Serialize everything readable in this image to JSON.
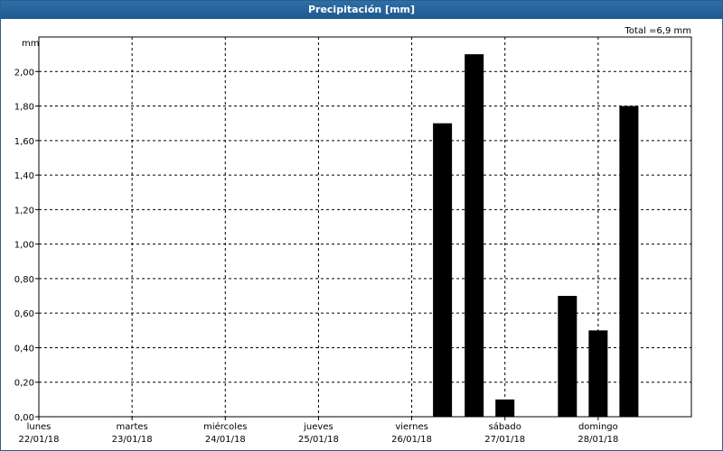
{
  "window": {
    "title": "Precipitación [mm]"
  },
  "chart_data": {
    "type": "bar",
    "title": "Precipitación [mm]",
    "unit": "mm",
    "total_label": "Total =6,9 mm",
    "ylim": [
      0,
      2.2
    ],
    "y_ticks": [
      {
        "value": 0.0,
        "label": "0,00"
      },
      {
        "value": 0.2,
        "label": "0,20"
      },
      {
        "value": 0.4,
        "label": "0,40"
      },
      {
        "value": 0.6,
        "label": "0,60"
      },
      {
        "value": 0.8,
        "label": "0,80"
      },
      {
        "value": 1.0,
        "label": "1,00"
      },
      {
        "value": 1.2,
        "label": "1,20"
      },
      {
        "value": 1.4,
        "label": "1,40"
      },
      {
        "value": 1.6,
        "label": "1,60"
      },
      {
        "value": 1.8,
        "label": "1,80"
      },
      {
        "value": 2.0,
        "label": "2,00"
      }
    ],
    "days": [
      {
        "name": "lunes",
        "date": "22/01/18"
      },
      {
        "name": "martes",
        "date": "23/01/18"
      },
      {
        "name": "miércoles",
        "date": "24/01/18"
      },
      {
        "name": "jueves",
        "date": "25/01/18"
      },
      {
        "name": "viernes",
        "date": "26/01/18"
      },
      {
        "name": "sábado",
        "date": "27/01/18"
      },
      {
        "name": "domingo",
        "date": "28/01/18"
      }
    ],
    "series": [
      {
        "values": [
          {
            "day": 4.33,
            "value": 1.7
          },
          {
            "day": 4.67,
            "value": 2.1
          },
          {
            "day": 5.0,
            "value": 0.1
          },
          {
            "day": 5.67,
            "value": 0.7
          },
          {
            "day": 6.0,
            "value": 0.5
          },
          {
            "day": 6.33,
            "value": 1.8
          }
        ]
      }
    ],
    "grid": true,
    "colors": {
      "bar": "#000000",
      "grid": "#000000",
      "title_bar": "#1e5a92"
    }
  }
}
